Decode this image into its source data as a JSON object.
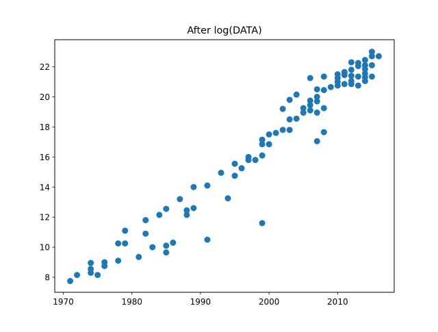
{
  "chart_data": {
    "type": "scatter",
    "title": "After log(DATA)",
    "xlabel": "",
    "ylabel": "",
    "xlim": [
      1968.75,
      2018.25
    ],
    "ylim": [
      7.0,
      23.8
    ],
    "xticks": [
      1970,
      1980,
      1990,
      2000,
      2010
    ],
    "yticks": [
      8,
      10,
      12,
      14,
      16,
      18,
      20,
      22
    ],
    "grid": false,
    "legend": "none",
    "marker_color": "#1f77b4",
    "series": [
      {
        "points": [
          [
            1971,
            7.75
          ],
          [
            1972,
            8.15
          ],
          [
            1974,
            8.95
          ],
          [
            1974,
            8.55
          ],
          [
            1974,
            8.3
          ],
          [
            1975,
            8.15
          ],
          [
            1976,
            9.0
          ],
          [
            1976,
            8.75
          ],
          [
            1978,
            9.1
          ],
          [
            1978,
            10.25
          ],
          [
            1979,
            11.1
          ],
          [
            1979,
            10.25
          ],
          [
            1981,
            9.35
          ],
          [
            1982,
            11.8
          ],
          [
            1982,
            10.9
          ],
          [
            1983,
            10.0
          ],
          [
            1984,
            12.15
          ],
          [
            1985,
            12.55
          ],
          [
            1985,
            10.1
          ],
          [
            1985,
            9.65
          ],
          [
            1986,
            10.3
          ],
          [
            1987,
            13.2
          ],
          [
            1988,
            12.45
          ],
          [
            1988,
            12.15
          ],
          [
            1989,
            14.0
          ],
          [
            1989,
            12.6
          ],
          [
            1991,
            14.1
          ],
          [
            1991,
            10.5
          ],
          [
            1993,
            14.95
          ],
          [
            1994,
            13.25
          ],
          [
            1995,
            15.55
          ],
          [
            1995,
            14.75
          ],
          [
            1996,
            15.25
          ],
          [
            1997,
            16.0
          ],
          [
            1997,
            15.8
          ],
          [
            1998,
            15.8
          ],
          [
            1999,
            17.15
          ],
          [
            1999,
            16.85
          ],
          [
            1999,
            16.1
          ],
          [
            1999,
            11.6
          ],
          [
            2000,
            17.5
          ],
          [
            2000,
            16.85
          ],
          [
            2001,
            17.6
          ],
          [
            2002,
            19.2
          ],
          [
            2002,
            17.8
          ],
          [
            2003,
            19.8
          ],
          [
            2003,
            18.5
          ],
          [
            2003,
            17.8
          ],
          [
            2004,
            20.15
          ],
          [
            2004,
            18.55
          ],
          [
            2005,
            19.25
          ],
          [
            2005,
            18.95
          ],
          [
            2006,
            21.25
          ],
          [
            2006,
            19.75
          ],
          [
            2006,
            19.45
          ],
          [
            2006,
            19.1
          ],
          [
            2007,
            20.5
          ],
          [
            2007,
            20.0
          ],
          [
            2007,
            19.7
          ],
          [
            2007,
            18.95
          ],
          [
            2007,
            17.05
          ],
          [
            2008,
            21.35
          ],
          [
            2008,
            20.45
          ],
          [
            2008,
            19.25
          ],
          [
            2008,
            17.65
          ],
          [
            2009,
            20.65
          ],
          [
            2010,
            21.5
          ],
          [
            2010,
            21.25
          ],
          [
            2010,
            21.0
          ],
          [
            2010,
            20.75
          ],
          [
            2011,
            21.65
          ],
          [
            2011,
            21.45
          ],
          [
            2011,
            20.85
          ],
          [
            2012,
            22.3
          ],
          [
            2012,
            21.8
          ],
          [
            2012,
            21.4
          ],
          [
            2012,
            21.05
          ],
          [
            2012,
            20.85
          ],
          [
            2013,
            22.25
          ],
          [
            2013,
            22.05
          ],
          [
            2013,
            21.35
          ],
          [
            2013,
            20.75
          ],
          [
            2014,
            22.45
          ],
          [
            2014,
            22.1
          ],
          [
            2014,
            21.85
          ],
          [
            2014,
            21.55
          ],
          [
            2014,
            21.3
          ],
          [
            2014,
            21.05
          ],
          [
            2015,
            23.0
          ],
          [
            2015,
            22.7
          ],
          [
            2015,
            22.1
          ],
          [
            2015,
            21.35
          ],
          [
            2016,
            22.7
          ]
        ]
      }
    ]
  }
}
